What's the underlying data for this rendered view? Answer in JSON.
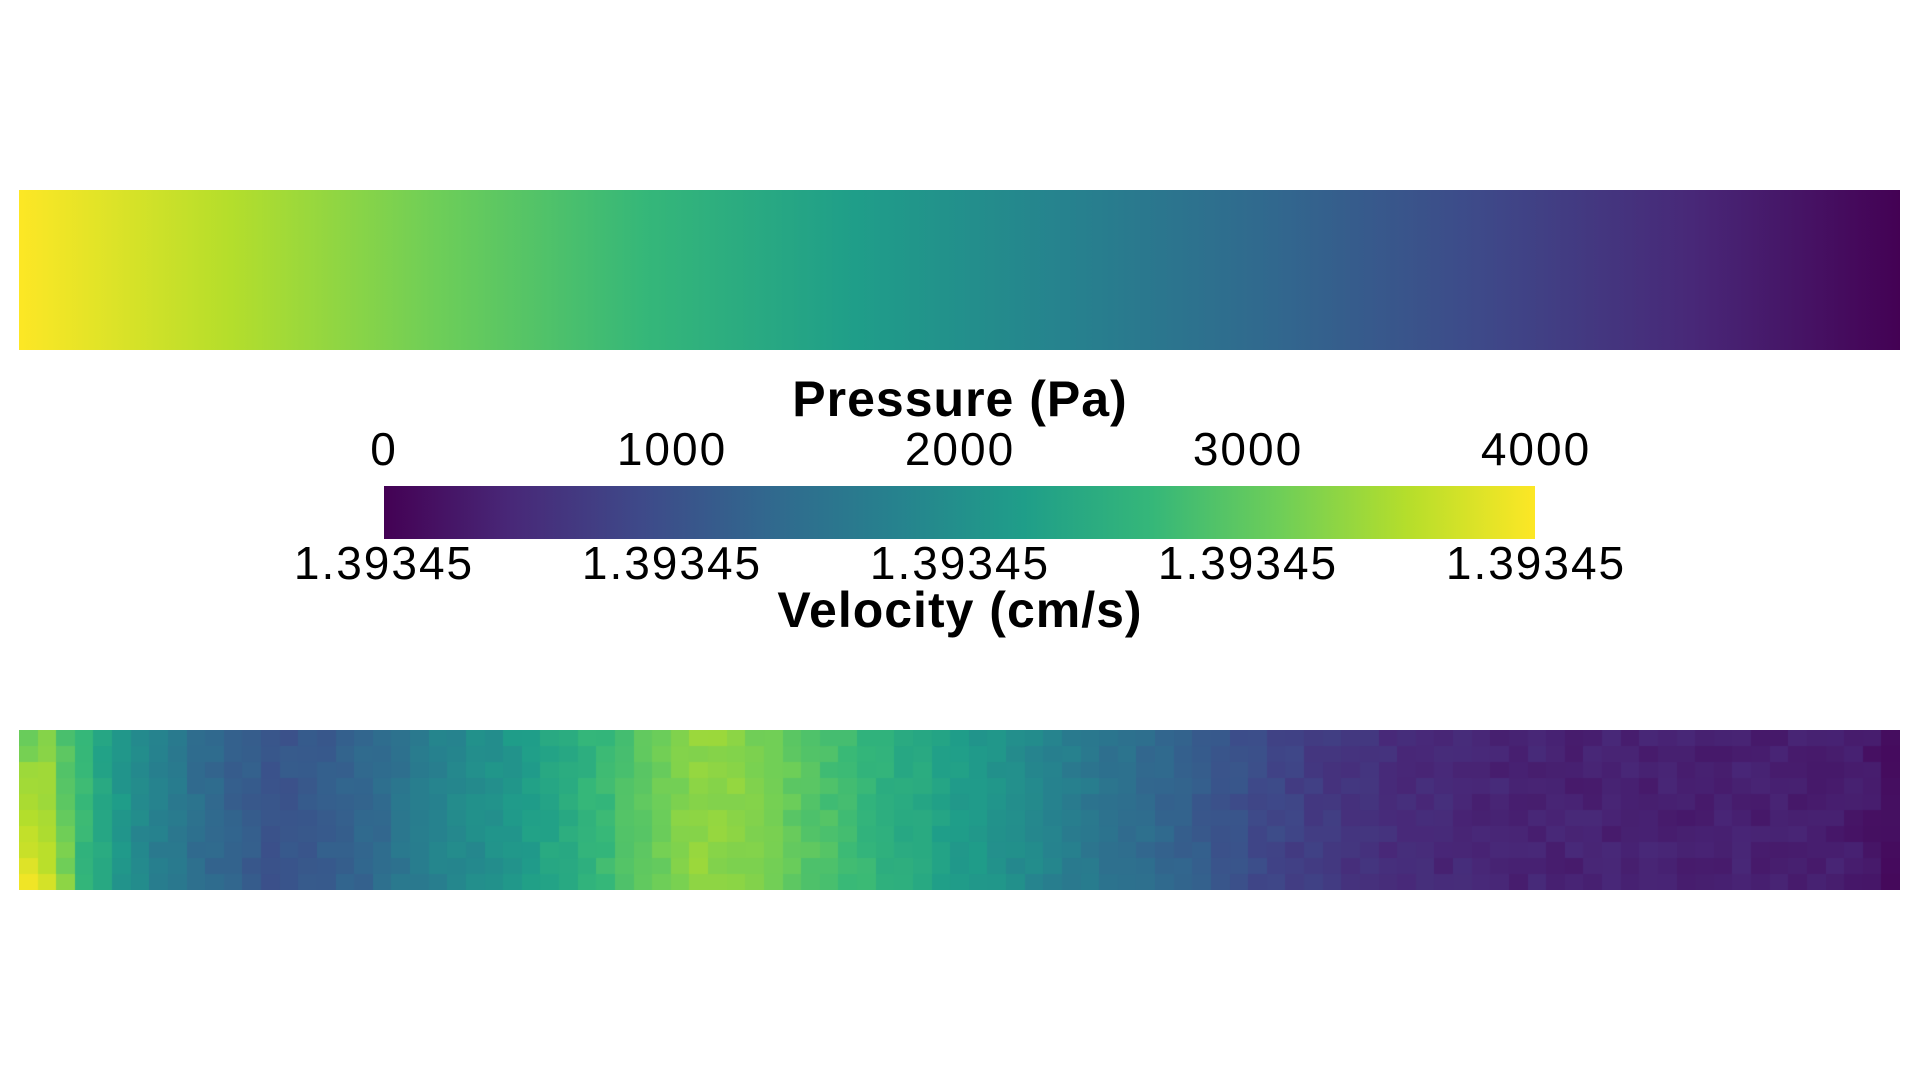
{
  "figure": {
    "description": "CFD pipe-flow pseudocolor visualization: smooth pressure field strip (top), viridis colorbar legend with dual scales (middle), coarse-grid velocity field strip (bottom)",
    "background": "#ffffff"
  },
  "legend": {
    "pressure": {
      "title": "Pressure (Pa)",
      "ticks": [
        "0",
        "1000",
        "2000",
        "3000",
        "4000"
      ]
    },
    "velocity": {
      "title": "Velocity (cm/s)",
      "ticks": [
        "1.39345",
        "1.39345",
        "1.39345",
        "1.39345",
        "1.39345"
      ]
    }
  },
  "colors": {
    "background": "#ffffff",
    "text": "#000000",
    "viridis": [
      "#440154",
      "#482878",
      "#3e4989",
      "#31688e",
      "#26828e",
      "#1f9e89",
      "#35b779",
      "#6ece58",
      "#b5de2b",
      "#fde725"
    ]
  },
  "chart_data": [
    {
      "type": "heatmap",
      "name": "pressure_field_strip",
      "field": "Pressure",
      "units": "Pa",
      "colormap": "viridis",
      "rendering": "smooth_gradient",
      "orientation": "horizontal",
      "value_left": 4000,
      "value_right": 0,
      "range": [
        0,
        4000
      ]
    },
    {
      "type": "colorbar",
      "name": "shared_colorbar_legend",
      "colormap": "viridis",
      "direction": "low_left_to_high_right",
      "top_scale": {
        "label": "Pressure (Pa)",
        "ticks": [
          0,
          1000,
          2000,
          3000,
          4000
        ]
      },
      "bottom_scale": {
        "label": "Velocity (cm/s)",
        "ticks": [
          1.39345,
          1.39345,
          1.39345,
          1.39345,
          1.39345
        ]
      }
    },
    {
      "type": "heatmap",
      "name": "velocity_field_strip",
      "field": "Velocity",
      "units": "cm/s",
      "colormap": "viridis",
      "rendering": "coarse_grid_cells",
      "uniform_value": 1.39345,
      "grid": {
        "rows": 10,
        "cols": 101
      },
      "column_profile": [
        [
          0.0,
          0.88
        ],
        [
          0.005,
          0.88
        ],
        [
          0.015,
          0.87
        ],
        [
          0.025,
          0.76
        ],
        [
          0.035,
          0.66
        ],
        [
          0.045,
          0.59
        ],
        [
          0.055,
          0.53
        ],
        [
          0.064,
          0.47
        ],
        [
          0.074,
          0.43
        ],
        [
          0.084,
          0.4
        ],
        [
          0.095,
          0.36
        ],
        [
          0.107,
          0.32
        ],
        [
          0.12,
          0.295
        ],
        [
          0.133,
          0.27
        ],
        [
          0.15,
          0.268
        ],
        [
          0.17,
          0.3
        ],
        [
          0.19,
          0.335
        ],
        [
          0.21,
          0.41
        ],
        [
          0.23,
          0.46
        ],
        [
          0.25,
          0.5
        ],
        [
          0.27,
          0.55
        ],
        [
          0.29,
          0.61
        ],
        [
          0.31,
          0.67
        ],
        [
          0.33,
          0.74
        ],
        [
          0.35,
          0.8
        ],
        [
          0.365,
          0.835
        ],
        [
          0.38,
          0.82
        ],
        [
          0.4,
          0.78
        ],
        [
          0.43,
          0.71
        ],
        [
          0.46,
          0.64
        ],
        [
          0.48,
          0.595
        ],
        [
          0.51,
          0.53
        ],
        [
          0.54,
          0.465
        ],
        [
          0.57,
          0.4
        ],
        [
          0.6,
          0.345
        ],
        [
          0.63,
          0.285
        ],
        [
          0.66,
          0.225
        ],
        [
          0.69,
          0.175
        ],
        [
          0.72,
          0.14
        ],
        [
          0.75,
          0.115
        ],
        [
          0.79,
          0.1
        ],
        [
          0.84,
          0.092
        ],
        [
          0.89,
          0.088
        ],
        [
          0.94,
          0.085
        ],
        [
          0.97,
          0.08
        ],
        [
          0.985,
          0.06
        ],
        [
          0.993,
          0.035
        ],
        [
          1.0,
          0.02
        ]
      ],
      "edge_gradient_left_cols": [
        0.1,
        0.05,
        0.05
      ],
      "noise_amplitude": 0.022,
      "noise_seed": 7
    }
  ]
}
